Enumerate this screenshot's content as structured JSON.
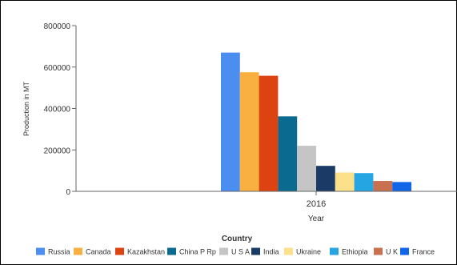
{
  "chart_data": {
    "type": "bar",
    "xlabel": "Year",
    "ylabel": "Production in MT",
    "ylim": [
      0,
      800000
    ],
    "yticks": [
      "800000",
      "600000",
      "400000",
      "200000",
      "0"
    ],
    "ytick_values": [
      800000,
      600000,
      400000,
      200000,
      0
    ],
    "categories": [
      "2016"
    ],
    "legend_title": "Country",
    "legend_position": "bottom",
    "grid": false,
    "series": [
      {
        "name": "Russia",
        "color": "#4b8ef0",
        "values": [
          670000
        ]
      },
      {
        "name": "Canada",
        "color": "#f9b040",
        "values": [
          575000
        ]
      },
      {
        "name": "Kazakhstan",
        "color": "#dd4310",
        "values": [
          558000
        ]
      },
      {
        "name": "China P Rp",
        "color": "#0b6a8f",
        "values": [
          362000
        ]
      },
      {
        "name": "U S A",
        "color": "#c5c5c5",
        "values": [
          220000
        ]
      },
      {
        "name": "India",
        "color": "#1b3b66",
        "values": [
          123000
        ]
      },
      {
        "name": "Ukraine",
        "color": "#fce08a",
        "values": [
          91000
        ]
      },
      {
        "name": "Ethiopia",
        "color": "#25a6e3",
        "values": [
          88000
        ]
      },
      {
        "name": "U K",
        "color": "#c8704f",
        "values": [
          50000
        ]
      },
      {
        "name": "France",
        "color": "#1066e6",
        "values": [
          45000
        ]
      }
    ]
  }
}
